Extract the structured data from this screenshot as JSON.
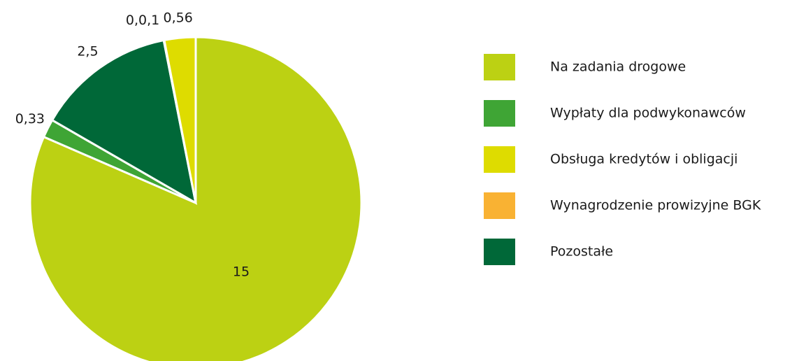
{
  "chart_data": {
    "type": "pie",
    "categories": [
      "Na zadania drogowe",
      "Wypłaty dla podwykonawców",
      "Obsługa kredytów i obligacji",
      "Wynagrodzenie prowizyjne BGK",
      "Pozostałe"
    ],
    "values": [
      15,
      0.33,
      0.56,
      0.01,
      2.5
    ],
    "value_labels": [
      "15",
      "0,33",
      "0,56",
      "0,0,1",
      "2,5"
    ],
    "colors": [
      "#bcd113",
      "#3fa535",
      "#dedc00",
      "#f9b233",
      "#006838"
    ],
    "legend": "right"
  }
}
